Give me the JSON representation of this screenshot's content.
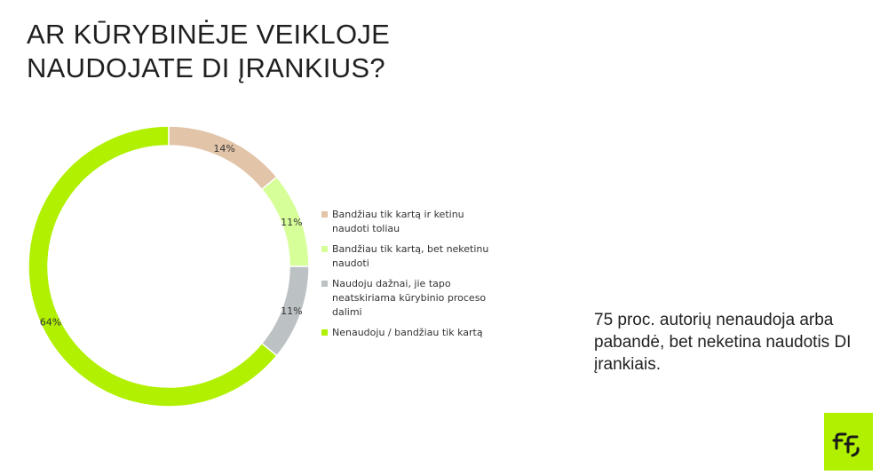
{
  "title": {
    "line1": "AR KŪRYBINĖJE VEIKLOJE",
    "line2": "NAUDOJATE DI ĮRANKIUS?"
  },
  "chart_data": {
    "type": "pie",
    "variant": "donut",
    "start_angle_deg": 0,
    "direction": "clockwise",
    "categories": [
      "Bandžiau tik kartą ir ketinu naudoti toliau",
      "Bandžiau tik kartą, bet neketinu naudoti",
      "Naudoju dažnai, jie tapo neatskiriama kūrybinio proceso dalimi",
      "Nenaudoju / bandžiau tik kartą"
    ],
    "values": [
      14,
      11,
      11,
      64
    ],
    "data_labels": [
      "14%",
      "11%",
      "11%",
      "64%"
    ],
    "colors": [
      "#e2c4a8",
      "#d7ff99",
      "#bcc1c4",
      "#b0f000"
    ],
    "legend_position": "right"
  },
  "note": "75 proc. autorių nenaudoja arba pabandė, bet neketina naudotis DI įrankiais.",
  "logo": {
    "icon": "ff-logo-icon",
    "background": "#b0f000",
    "glyph_color": "#1a1a1a"
  }
}
